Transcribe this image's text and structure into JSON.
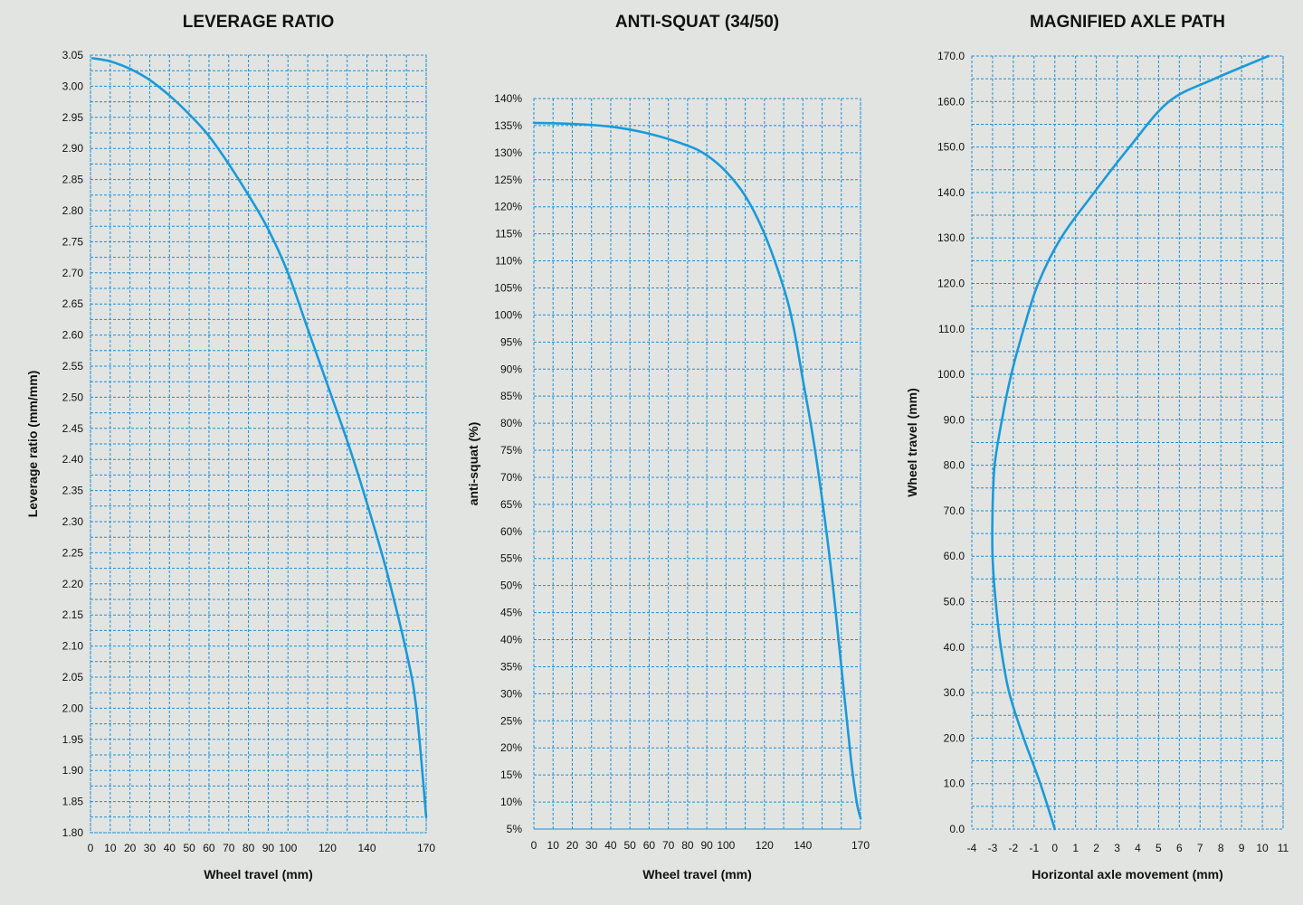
{
  "colors": {
    "background": "#e2e4e2",
    "grid": "#1a8fd6",
    "curve": "#1a9ad9",
    "text": "#111111"
  },
  "chart_data": [
    {
      "type": "line",
      "title": "LEVERAGE RATIO",
      "xlabel": "Wheel travel (mm)",
      "ylabel": "Leverage ratio (mm/mm)",
      "xlim": [
        0,
        170
      ],
      "ylim": [
        1.8,
        3.05
      ],
      "x_ticks": [
        0,
        10,
        20,
        30,
        40,
        50,
        60,
        70,
        80,
        90,
        100,
        120,
        140,
        170
      ],
      "x_tick_labels": [
        "0",
        "10",
        "20",
        "30",
        "40",
        "50",
        "60",
        "70",
        "80",
        "90",
        "100",
        "120",
        "140",
        "170"
      ],
      "y_ticks": [
        1.8,
        1.85,
        1.9,
        1.95,
        2.0,
        2.05,
        2.1,
        2.15,
        2.2,
        2.25,
        2.3,
        2.35,
        2.4,
        2.45,
        2.5,
        2.55,
        2.6,
        2.65,
        2.7,
        2.75,
        2.8,
        2.85,
        2.9,
        2.95,
        3.0,
        3.05
      ],
      "y_tick_labels": [
        "1.80",
        "1.85",
        "1.90",
        "1.95",
        "2.00",
        "2.05",
        "2.10",
        "2.15",
        "2.20",
        "2.25",
        "2.30",
        "2.35",
        "2.40",
        "2.45",
        "2.50",
        "2.55",
        "2.60",
        "2.65",
        "2.70",
        "2.75",
        "2.80",
        "2.85",
        "2.90",
        "2.95",
        "3.00",
        "3.05"
      ],
      "grid": true,
      "series": [
        {
          "x": [
            1,
            10,
            20,
            30,
            40,
            50,
            60,
            70,
            80,
            90,
            100,
            110,
            120,
            130,
            140,
            150,
            160,
            165,
            170
          ],
          "y": [
            3.045,
            3.04,
            3.028,
            3.01,
            2.985,
            2.955,
            2.92,
            2.875,
            2.825,
            2.77,
            2.7,
            2.61,
            2.52,
            2.43,
            2.33,
            2.22,
            2.09,
            2.0,
            1.825
          ]
        }
      ]
    },
    {
      "type": "line",
      "title": "ANTI-SQUAT (34/50)",
      "xlabel": "Wheel travel (mm)",
      "ylabel": "anti-squat (%)",
      "xlim": [
        0,
        170
      ],
      "ylim": [
        5,
        140
      ],
      "x_ticks": [
        0,
        10,
        20,
        30,
        40,
        50,
        60,
        70,
        80,
        90,
        100,
        120,
        140,
        170
      ],
      "x_tick_labels": [
        "0",
        "10",
        "20",
        "30",
        "40",
        "50",
        "60",
        "70",
        "80",
        "90",
        "100",
        "120",
        "140",
        "170"
      ],
      "y_ticks": [
        5,
        10,
        15,
        20,
        25,
        30,
        35,
        40,
        45,
        50,
        55,
        60,
        65,
        70,
        75,
        80,
        85,
        90,
        95,
        100,
        105,
        110,
        115,
        120,
        125,
        130,
        135,
        140
      ],
      "y_tick_labels": [
        "5%",
        "10%",
        "15%",
        "20%",
        "25%",
        "30%",
        "35%",
        "40%",
        "45%",
        "50%",
        "55%",
        "60%",
        "65%",
        "70%",
        "75%",
        "80%",
        "85%",
        "90%",
        "95%",
        "100%",
        "105%",
        "110%",
        "115%",
        "120%",
        "125%",
        "130%",
        "135%",
        "140%"
      ],
      "grid": true,
      "series": [
        {
          "x": [
            0,
            20,
            40,
            60,
            80,
            90,
            100,
            110,
            120,
            130,
            135,
            140,
            145,
            150,
            155,
            160,
            165,
            168,
            170
          ],
          "y": [
            135.5,
            135.3,
            134.8,
            133.5,
            131.3,
            129.5,
            126.5,
            122,
            115,
            105,
            98,
            88,
            78,
            66,
            52,
            35,
            18,
            10,
            7
          ]
        }
      ]
    },
    {
      "type": "line",
      "title": "MAGNIFIED AXLE PATH",
      "xlabel": "Horizontal axle movement (mm)",
      "ylabel": "Wheel travel (mm)",
      "xlim": [
        -4,
        11
      ],
      "ylim": [
        0,
        170
      ],
      "x_ticks": [
        -4,
        -3,
        -2,
        -1,
        0,
        1,
        2,
        3,
        4,
        5,
        6,
        7,
        8,
        9,
        10,
        11
      ],
      "x_tick_labels": [
        "-4",
        "-3",
        "-2",
        "-1",
        "0",
        "1",
        "2",
        "3",
        "4",
        "5",
        "6",
        "7",
        "8",
        "9",
        "10",
        "11"
      ],
      "y_ticks": [
        0,
        10,
        20,
        30,
        40,
        50,
        60,
        70,
        80,
        90,
        100,
        110,
        120,
        130,
        140,
        150,
        160,
        170
      ],
      "y_tick_labels": [
        "0.0",
        "10.0",
        "20.0",
        "30.0",
        "40.0",
        "50.0",
        "60.0",
        "70.0",
        "80.0",
        "90.0",
        "100.0",
        "110.0",
        "120.0",
        "130.0",
        "140.0",
        "150.0",
        "160.0",
        "170.0"
      ],
      "grid": true,
      "series": [
        {
          "x": [
            0,
            -0.7,
            -1.5,
            -2.2,
            -2.6,
            -2.85,
            -3.0,
            -3.0,
            -2.9,
            -2.55,
            -2.1,
            -1.5,
            -0.8,
            0.3,
            1.9,
            3.6,
            5.5,
            7.7,
            10.3
          ],
          "y": [
            0,
            10,
            20,
            30,
            40,
            50,
            60,
            70,
            80,
            90,
            100,
            110,
            120,
            130,
            140,
            150,
            160,
            165,
            170
          ]
        }
      ]
    }
  ]
}
